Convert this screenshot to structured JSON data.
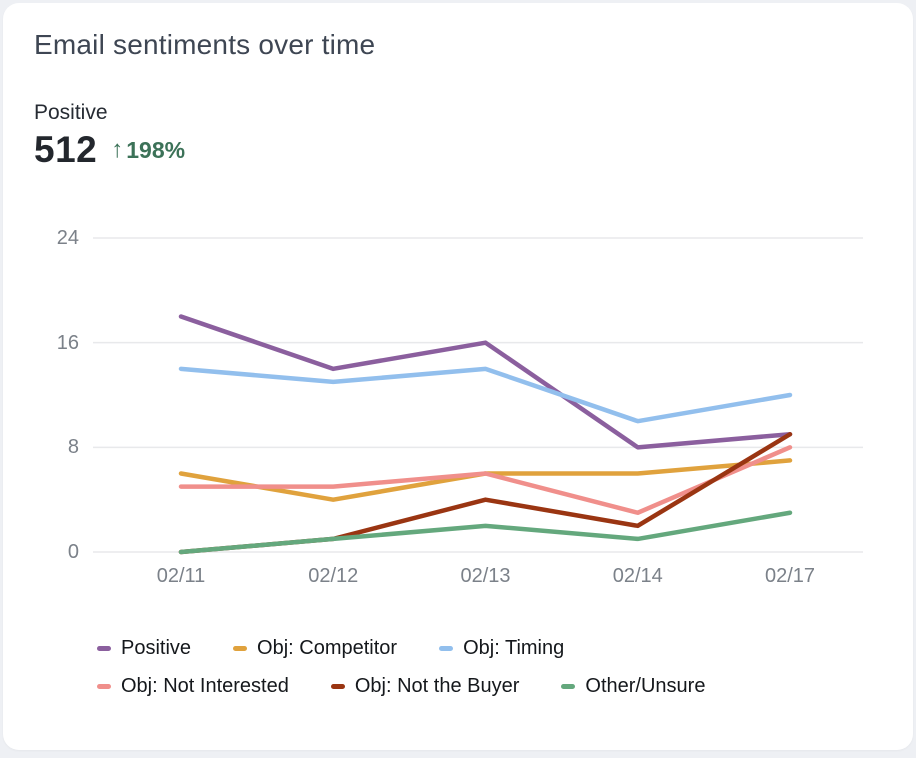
{
  "card": {
    "title": "Email sentiments over time"
  },
  "metric": {
    "label": "Positive",
    "value": "512",
    "up_arrow": "↑",
    "delta": "198%",
    "delta_color": "#3c7258"
  },
  "chart_data": {
    "type": "line",
    "title": "Email sentiments over time",
    "x": [
      "02/11",
      "02/12",
      "02/13",
      "02/14",
      "02/17"
    ],
    "series": [
      {
        "name": "Positive",
        "color": "#8b5f9e",
        "values": [
          18,
          14,
          16,
          8,
          9
        ]
      },
      {
        "name": "Obj: Competitor",
        "color": "#e0a23d",
        "values": [
          6,
          4,
          6,
          6,
          7
        ]
      },
      {
        "name": "Obj: Timing",
        "color": "#92bfed",
        "values": [
          14,
          13,
          14,
          10,
          12
        ]
      },
      {
        "name": "Obj: Not Interested",
        "color": "#f08f8b",
        "values": [
          5,
          5,
          6,
          3,
          8
        ]
      },
      {
        "name": "Obj: Not the Buyer",
        "color": "#9a3512",
        "values": [
          0,
          1,
          4,
          2,
          9
        ]
      },
      {
        "name": "Other/Unsure",
        "color": "#64a87d",
        "values": [
          0,
          1,
          2,
          1,
          3
        ]
      }
    ],
    "yticks": [
      0,
      8,
      16,
      24
    ],
    "ylim": [
      0,
      24
    ],
    "grid": "horizontal",
    "gridline_color": "#e8e9eb",
    "legend_position": "bottom",
    "legend_rows": [
      [
        0,
        1,
        2
      ],
      [
        3,
        4,
        5
      ]
    ]
  }
}
